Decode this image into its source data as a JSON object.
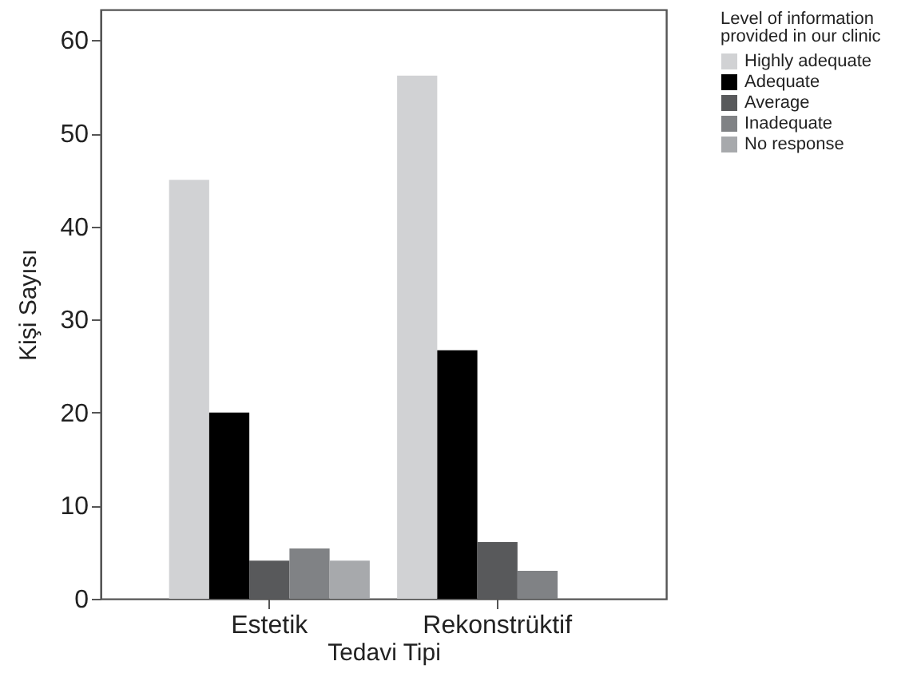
{
  "chart_data": {
    "type": "bar",
    "xlabel": "Tedavi Tipi",
    "ylabel": "Kişi Sayısı",
    "legend_title": "Level of information provided in our clinic",
    "categories": [
      "Estetik",
      "Rekonstrüktif"
    ],
    "series": [
      {
        "name": "Highly adequate",
        "color": "#d1d2d4",
        "values": [
          45,
          56.2
        ]
      },
      {
        "name": "Adequate",
        "color": "#000000",
        "values": [
          20,
          26.7
        ]
      },
      {
        "name": "Average",
        "color": "#58595b",
        "values": [
          4.1,
          6.1
        ]
      },
      {
        "name": "Inadequate",
        "color": "#808285",
        "values": [
          5.4,
          3
        ]
      },
      {
        "name": "No response",
        "color": "#a7a9ac",
        "values": [
          4.1,
          null
        ]
      }
    ],
    "ylim": [
      0,
      63.3
    ],
    "yticks": [
      0,
      10,
      20,
      30,
      40,
      50,
      60
    ],
    "grid": false,
    "legend": "top right"
  }
}
